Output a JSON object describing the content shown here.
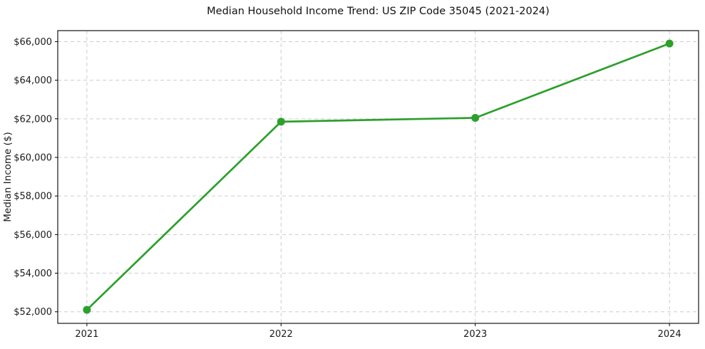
{
  "chart_data": {
    "type": "line",
    "title": "Median Household Income Trend: US ZIP Code 35045 (2021-2024)",
    "xlabel": "",
    "ylabel": "Median Income ($)",
    "x": [
      2021,
      2022,
      2023,
      2024
    ],
    "xtick_labels": [
      "2021",
      "2022",
      "2023",
      "2024"
    ],
    "series": [
      {
        "name": "Median Household Income",
        "values": [
          52100,
          61850,
          62050,
          65900
        ]
      }
    ],
    "yticks": [
      52000,
      54000,
      56000,
      58000,
      60000,
      62000,
      64000,
      66000
    ],
    "ytick_labels": [
      "$52,000",
      "$54,000",
      "$56,000",
      "$58,000",
      "$60,000",
      "$62,000",
      "$64,000",
      "$66,000"
    ],
    "xlim": [
      2020.85,
      2024.15
    ],
    "ylim": [
      51400,
      66570
    ],
    "grid": true,
    "grid_style": "dashed",
    "grid_color": "#cccccc",
    "line_color": "#2ca02c",
    "marker": "circle",
    "legend": "none"
  }
}
